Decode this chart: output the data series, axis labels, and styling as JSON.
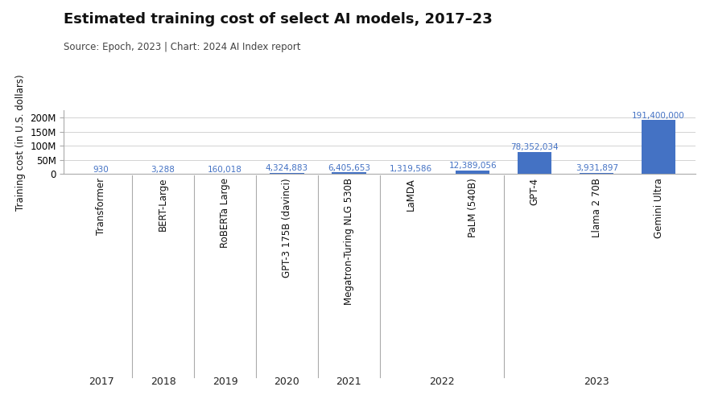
{
  "title": "Estimated training cost of select AI models, 2017–23",
  "subtitle": "Source: Epoch, 2023 | Chart: 2024 AI Index report",
  "ylabel": "Training cost (in U.S. dollars)",
  "models": [
    "Transformer",
    "BERT-Large",
    "RoBERTa Large",
    "GPT-3 175B (davinci)",
    "Megatron-Turing NLG 530B",
    "LaMDA",
    "PaLM (540B)",
    "GPT-4",
    "Llama 2 70B",
    "Gemini Ultra"
  ],
  "values": [
    930,
    3288,
    160018,
    4324883,
    6405653,
    1319586,
    12389056,
    78352034,
    3931897,
    191400000
  ],
  "labels": [
    "930",
    "3,288",
    "160,018",
    "4,324,883",
    "6,405,653",
    "1,319,586",
    "12,389,056",
    "78,352,034",
    "3,931,897",
    "191,400,000"
  ],
  "year_groups": [
    {
      "year": "2017",
      "indices": [
        0
      ]
    },
    {
      "year": "2018",
      "indices": [
        1
      ]
    },
    {
      "year": "2019",
      "indices": [
        2
      ]
    },
    {
      "year": "2020",
      "indices": [
        3
      ]
    },
    {
      "year": "2021",
      "indices": [
        4
      ]
    },
    {
      "year": "2022",
      "indices": [
        5,
        6
      ]
    },
    {
      "year": "2023",
      "indices": [
        7,
        8,
        9
      ]
    }
  ],
  "bar_color": "#4472C4",
  "label_color": "#4472C4",
  "background_color": "#ffffff",
  "grid_color": "#cccccc",
  "spine_color": "#aaaaaa",
  "text_color": "#111111",
  "subtitle_color": "#444444",
  "year_label_color": "#222222",
  "ylim": [
    0,
    225000000
  ],
  "yticks": [
    0,
    50000000,
    100000000,
    150000000,
    200000000
  ],
  "ytick_labels": [
    "0",
    "50M",
    "100M",
    "150M",
    "200M"
  ],
  "title_fontsize": 13,
  "subtitle_fontsize": 8.5,
  "value_label_fontsize": 7.5,
  "axis_fontsize": 8.5,
  "year_fontsize": 9,
  "ylabel_fontsize": 8.5
}
